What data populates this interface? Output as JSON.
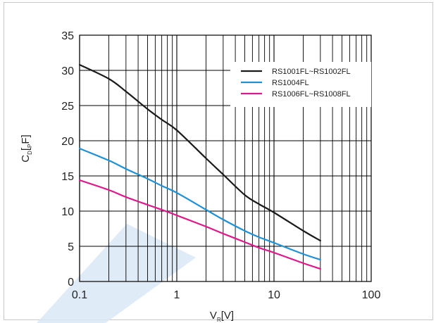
{
  "chart_data": {
    "type": "line",
    "title": "",
    "xlabel": {
      "main": "V",
      "sub": "R",
      "unit": "[V]"
    },
    "ylabel": {
      "main": "C",
      "sub": "D",
      "unit_open": "[",
      "prefix": "P",
      "unit_close": "F]"
    },
    "x_scale": "log",
    "xlim": [
      0.1,
      100
    ],
    "ylim": [
      0,
      35
    ],
    "x_ticks": [
      0.1,
      1,
      10,
      100
    ],
    "x_tick_labels": [
      "0.1",
      "1",
      "10",
      "100"
    ],
    "y_ticks": [
      0,
      5,
      10,
      15,
      20,
      25,
      30,
      35
    ],
    "y_tick_labels": [
      "0",
      "5",
      "10",
      "15",
      "20",
      "25",
      "30",
      "35"
    ],
    "grid": true,
    "legend_position": "top-right",
    "series": [
      {
        "name": "RS1001FL~RS1002FL",
        "color": "#1a1a1a",
        "x": [
          0.1,
          0.2,
          0.3,
          0.5,
          0.7,
          1,
          2,
          3,
          5,
          7,
          10,
          20,
          30
        ],
        "y": [
          30.8,
          28.8,
          27.0,
          24.5,
          23.0,
          21.5,
          17.5,
          15.2,
          12.3,
          11.0,
          9.8,
          7.2,
          5.8
        ]
      },
      {
        "name": "RS1004FL",
        "color": "#1e90d6",
        "x": [
          0.1,
          0.2,
          0.3,
          0.5,
          0.7,
          1,
          2,
          3,
          5,
          7,
          10,
          20,
          30
        ],
        "y": [
          18.9,
          17.2,
          16.0,
          14.6,
          13.6,
          12.6,
          10.2,
          8.8,
          7.2,
          6.3,
          5.5,
          3.9,
          3.1
        ]
      },
      {
        "name": "RS1006FL~RS1008FL",
        "color": "#e0168a",
        "x": [
          0.1,
          0.2,
          0.3,
          0.5,
          0.7,
          1,
          2,
          3,
          5,
          7,
          10,
          20,
          30
        ],
        "y": [
          14.4,
          13.0,
          12.0,
          10.9,
          10.2,
          9.4,
          7.8,
          6.8,
          5.6,
          4.8,
          4.1,
          2.6,
          1.8
        ]
      }
    ],
    "colors": {
      "grid": "#000000",
      "watermark": "#dbe7f7"
    }
  }
}
